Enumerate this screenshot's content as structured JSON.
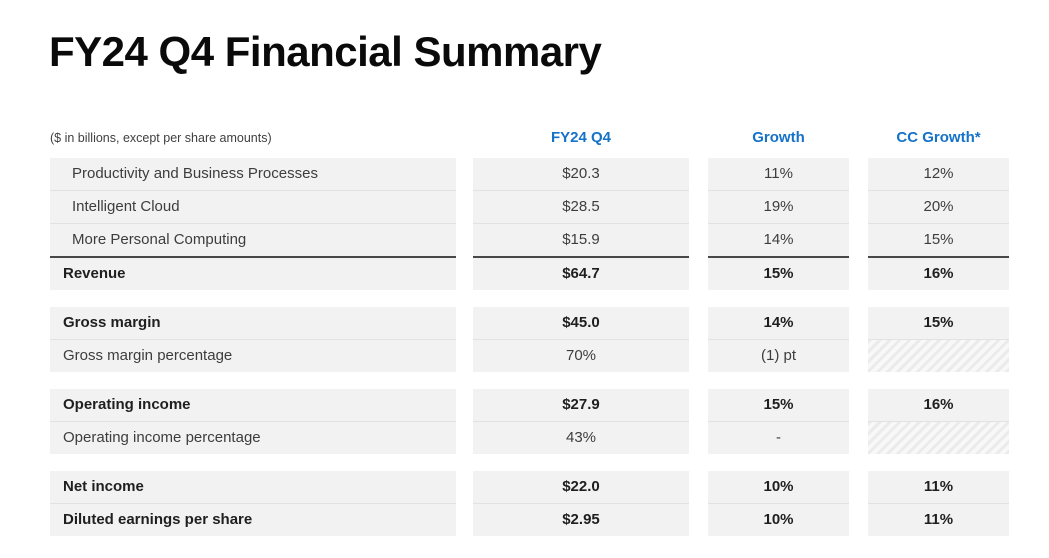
{
  "title": "FY24 Q4 Financial Summary",
  "table": {
    "note": "($ in billions, except per share amounts)",
    "columns": [
      "FY24 Q4",
      "Growth",
      "CC Growth*"
    ],
    "sections": [
      {
        "rows": [
          {
            "label": "Productivity and Business Processes",
            "indent": true,
            "bold": false,
            "values": [
              {
                "text": "$20.3"
              },
              {
                "text": "11%"
              },
              {
                "text": "12%"
              }
            ]
          },
          {
            "label": "Intelligent Cloud",
            "indent": true,
            "bold": false,
            "values": [
              {
                "text": "$28.5"
              },
              {
                "text": "19%"
              },
              {
                "text": "20%"
              }
            ]
          },
          {
            "label": "More Personal Computing",
            "indent": true,
            "bold": false,
            "values": [
              {
                "text": "$15.9"
              },
              {
                "text": "14%"
              },
              {
                "text": "15%"
              }
            ]
          },
          {
            "label": "Revenue",
            "indent": false,
            "bold": true,
            "total": true,
            "values": [
              {
                "text": "$64.7"
              },
              {
                "text": "15%"
              },
              {
                "text": "16%"
              }
            ]
          }
        ]
      },
      {
        "rows": [
          {
            "label": "Gross margin",
            "indent": false,
            "bold": true,
            "values": [
              {
                "text": "$45.0"
              },
              {
                "text": "14%"
              },
              {
                "text": "15%"
              }
            ]
          },
          {
            "label": "Gross margin percentage",
            "indent": false,
            "bold": false,
            "values": [
              {
                "text": "70%"
              },
              {
                "text": "(1) pt"
              },
              {
                "text": "",
                "hatched": true
              }
            ]
          }
        ]
      },
      {
        "rows": [
          {
            "label": "Operating income",
            "indent": false,
            "bold": true,
            "values": [
              {
                "text": "$27.9"
              },
              {
                "text": "15%"
              },
              {
                "text": "16%"
              }
            ]
          },
          {
            "label": "Operating income percentage",
            "indent": false,
            "bold": false,
            "values": [
              {
                "text": "43%"
              },
              {
                "text": "-"
              },
              {
                "text": "",
                "hatched": true
              }
            ]
          }
        ]
      },
      {
        "rows": [
          {
            "label": "Net income",
            "indent": false,
            "bold": true,
            "values": [
              {
                "text": "$22.0"
              },
              {
                "text": "10%"
              },
              {
                "text": "11%"
              }
            ]
          },
          {
            "label": "Diluted earnings per share",
            "indent": false,
            "bold": true,
            "values": [
              {
                "text": "$2.95"
              },
              {
                "text": "10%"
              },
              {
                "text": "11%"
              }
            ]
          }
        ]
      }
    ]
  },
  "colors": {
    "accent_blue": "#1472C8",
    "row_bg": "#F2F2F2",
    "total_rule": "#484848",
    "title_text": "#0A0A0A"
  }
}
